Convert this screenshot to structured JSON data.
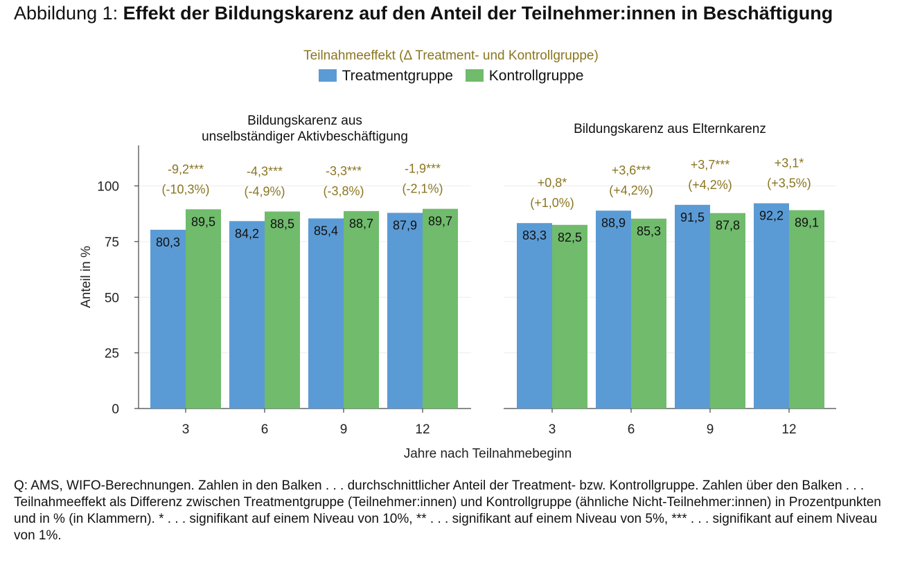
{
  "figure": {
    "title_prefix": "Abbildung 1: ",
    "title_main": "Effekt der Bildungskarenz auf den Anteil der Teilnehmer:innen in Beschäftigung",
    "footnote": "Q: AMS, WIFO-Berechnungen. Zahlen in den Balken . . . durchschnittlicher Anteil der Treatment- bzw. Kontrollgruppe. Zahlen über den Balken . . . Teilnahmeeffekt als Differenz zwischen Treatmentgruppe (Teilnehmer:innen) und Kontrollgruppe (ähnliche Nicht-Teilnehmer:innen) in Prozentpunkten und in % (in Klammern). * . . . signifikant auf einem Niveau von 10%, ** . . . signifikant auf einem Niveau von 5%, *** . . . signifikant auf einem Niveau von 1%."
  },
  "legend": {
    "title": "Teilnahmeeffekt (Δ Treatment- und Kontrollgruppe)",
    "items": [
      {
        "label": "Treatmentgruppe",
        "color": "#5b9bd5"
      },
      {
        "label": "Kontrollgruppe",
        "color": "#70bb6c"
      }
    ]
  },
  "colors": {
    "treatment": "#5b9bd5",
    "control": "#70bb6c",
    "effect_text": "#8a7622"
  },
  "chart_data": {
    "type": "bar",
    "ylabel": "Anteil in %",
    "xlabel": "Jahre nach Teilnahmebeginn",
    "ylim": [
      0,
      115
    ],
    "yticks": [
      0,
      25,
      50,
      75,
      100
    ],
    "grid": true,
    "legend_position": "top-center",
    "panels": [
      {
        "title": [
          "Bildungskarenz aus",
          "unselbständiger Aktivbeschäftigung"
        ],
        "categories": [
          "3",
          "6",
          "9",
          "12"
        ],
        "series": [
          {
            "name": "Treatmentgruppe",
            "values": [
              80.3,
              84.2,
              85.4,
              87.9
            ],
            "labels": [
              "80,3",
              "84,2",
              "85,4",
              "87,9"
            ]
          },
          {
            "name": "Kontrollgruppe",
            "values": [
              89.5,
              88.5,
              88.7,
              89.7
            ],
            "labels": [
              "89,5",
              "88,5",
              "88,7",
              "89,7"
            ]
          }
        ],
        "effects": [
          {
            "pp": "-9,2***",
            "pct": "(-10,3%)"
          },
          {
            "pp": "-4,3***",
            "pct": "(-4,9%)"
          },
          {
            "pp": "-3,3***",
            "pct": "(-3,8%)"
          },
          {
            "pp": "-1,9***",
            "pct": "(-2,1%)"
          }
        ]
      },
      {
        "title": [
          "Bildungskarenz aus Elternkarenz"
        ],
        "categories": [
          "3",
          "6",
          "9",
          "12"
        ],
        "series": [
          {
            "name": "Treatmentgruppe",
            "values": [
              83.3,
              88.9,
              91.5,
              92.2
            ],
            "labels": [
              "83,3",
              "88,9",
              "91,5",
              "92,2"
            ]
          },
          {
            "name": "Kontrollgruppe",
            "values": [
              82.5,
              85.3,
              87.8,
              89.1
            ],
            "labels": [
              "82,5",
              "85,3",
              "87,8",
              "89,1"
            ]
          }
        ],
        "effects": [
          {
            "pp": "+0,8*",
            "pct": "(+1,0%)"
          },
          {
            "pp": "+3,6***",
            "pct": "(+4,2%)"
          },
          {
            "pp": "+3,7***",
            "pct": "(+4,2%)"
          },
          {
            "pp": "+3,1*",
            "pct": "(+3,5%)"
          }
        ]
      }
    ]
  }
}
